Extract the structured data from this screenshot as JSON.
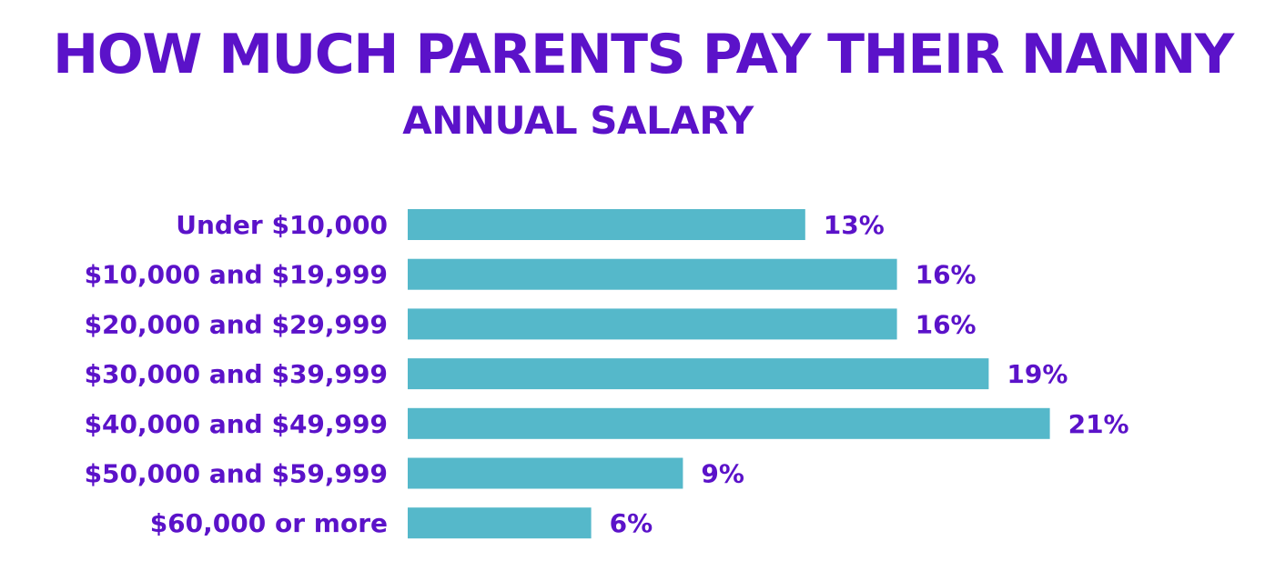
{
  "chart_data": {
    "type": "bar",
    "orientation": "horizontal",
    "title": "HOW MUCH PARENTS PAY THEIR NANNY",
    "subtitle": "ANNUAL SALARY",
    "xlabel": "",
    "ylabel": "",
    "grid": false,
    "legend": "none",
    "xlim": [
      0,
      21
    ],
    "categories": [
      "Under $10,000",
      "$10,000 and $19,999",
      "$20,000 and $29,999",
      "$30,000 and $39,999",
      "$40,000 and $49,999",
      "$50,000 and $59,999",
      "$60,000 or more"
    ],
    "values": [
      13,
      16,
      16,
      19,
      21,
      9,
      6
    ],
    "value_labels": [
      "13%",
      "16%",
      "16%",
      "19%",
      "21%",
      "9%",
      "6%"
    ]
  },
  "colors": {
    "title": "#5b12c9",
    "bar": "#55b8ca",
    "label": "#5b12c9"
  }
}
